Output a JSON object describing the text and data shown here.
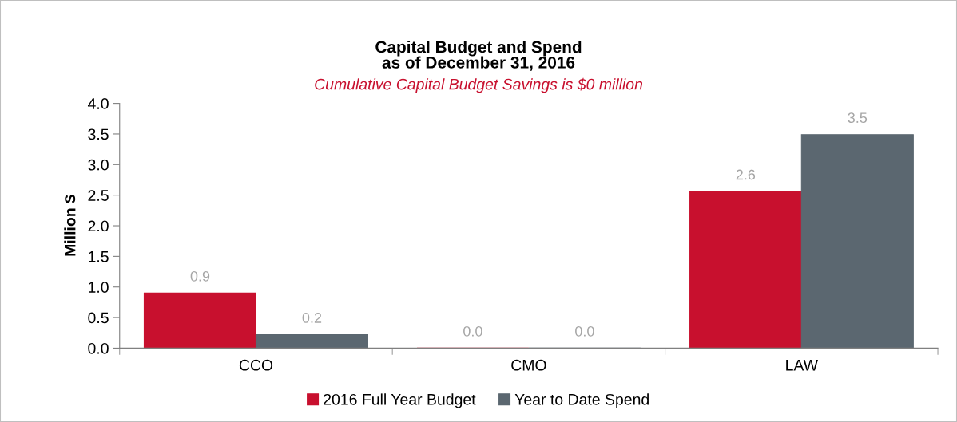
{
  "chart_data": {
    "type": "bar",
    "title": "Capital Budget and Spend\nas of December 31, 2016",
    "subtitle": "Cumulative Capital Budget Savings is $0 million",
    "ylabel": "Million $",
    "categories": [
      "CCO",
      "CMO",
      "LAW"
    ],
    "series": [
      {
        "name": "2016 Full Year Budget",
        "color": "#c8102e",
        "values": [
          0.9,
          0.0,
          2.56
        ],
        "value_labels": [
          "0.9",
          "0.0",
          "2.6"
        ]
      },
      {
        "name": "Year to Date Spend",
        "color": "#5b6770",
        "values": [
          0.22,
          0.0,
          3.49
        ],
        "value_labels": [
          "0.2",
          "0.0",
          "3.5"
        ]
      }
    ],
    "ylim": [
      0,
      4
    ],
    "yticks": [
      {
        "value": 0,
        "label": "0.0"
      },
      {
        "value": 0.5,
        "label": "0.5"
      },
      {
        "value": 1,
        "label": "1.0"
      },
      {
        "value": 1.5,
        "label": "1.5"
      },
      {
        "value": 2,
        "label": "2.0"
      },
      {
        "value": 2.5,
        "label": "2.5"
      },
      {
        "value": 3,
        "label": "3.0"
      },
      {
        "value": 3.5,
        "label": "3.5"
      },
      {
        "value": 4,
        "label": "4.0"
      }
    ],
    "grid": false,
    "legend": "bottom"
  }
}
